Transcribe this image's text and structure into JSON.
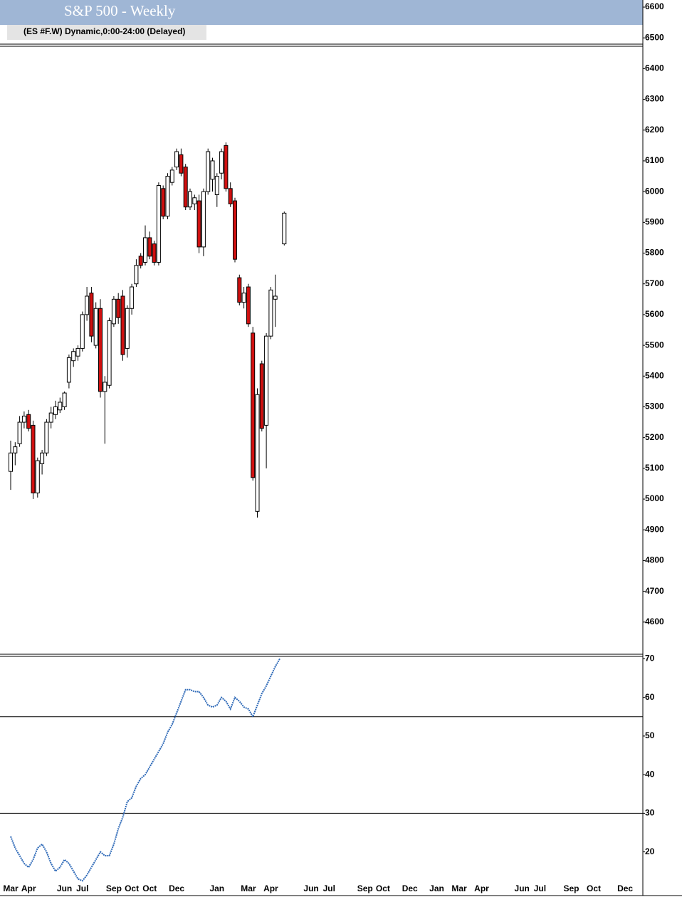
{
  "chart_data": [
    {
      "type": "candlestick",
      "title": "S&P 500 - Weekly",
      "subtitle": "(ES #F.W) Dynamic,0:00-24:00 (Delayed)",
      "up_color": "#ffffff",
      "down_color": "#d01010",
      "open": [
        5090,
        5150,
        5180,
        5250,
        5275,
        5240,
        5020,
        5115,
        5150,
        5250,
        5275,
        5290,
        5300,
        5380,
        5450,
        5465,
        5490,
        5600,
        5670,
        5500,
        5620,
        5350,
        5370,
        5570,
        5650,
        5660,
        5490,
        5620,
        5700,
        5790,
        5770,
        5850,
        5830,
        5770,
        6010,
        5920,
        6030,
        6080,
        6120,
        6080,
        5950,
        5960,
        5970,
        5820,
        6000,
        6040,
        5990,
        6060,
        6150,
        6010,
        5970,
        5720,
        5640,
        5690,
        5540,
        4960,
        5440,
        5240,
        5530,
        5650,
        null,
        5830
      ],
      "high": [
        5190,
        5185,
        5270,
        5285,
        5290,
        5255,
        5135,
        5160,
        5260,
        5300,
        5320,
        5330,
        5350,
        5470,
        5490,
        5500,
        5610,
        5690,
        5690,
        5640,
        5650,
        5400,
        5590,
        5660,
        5670,
        5680,
        5630,
        5700,
        5780,
        5800,
        5890,
        5870,
        5840,
        6030,
        6020,
        6060,
        6080,
        6140,
        6140,
        6090,
        6010,
        5990,
        5990,
        6010,
        6140,
        6110,
        6060,
        6140,
        6160,
        6030,
        5980,
        5730,
        5690,
        5700,
        5560,
        5360,
        5450,
        5540,
        5690,
        5730,
        null,
        5935
      ],
      "low": [
        5030,
        5110,
        5170,
        5230,
        5220,
        5000,
        5005,
        5080,
        5140,
        5230,
        5260,
        5280,
        5290,
        5360,
        5430,
        5450,
        5480,
        5580,
        5510,
        5490,
        5330,
        5180,
        5360,
        5560,
        5570,
        5450,
        5460,
        5600,
        5690,
        5750,
        5760,
        5780,
        5760,
        5760,
        5910,
        5910,
        6020,
        6070,
        6050,
        5940,
        5940,
        5940,
        5800,
        5790,
        5990,
        6000,
        5950,
        6040,
        6000,
        5950,
        5770,
        5630,
        5620,
        5560,
        5060,
        4940,
        5220,
        5100,
        5520,
        5560,
        null,
        5825
      ],
      "close": [
        5150,
        5170,
        5250,
        5270,
        5230,
        5020,
        5125,
        5150,
        5250,
        5280,
        5300,
        5315,
        5345,
        5460,
        5480,
        5490,
        5600,
        5660,
        5530,
        5620,
        5350,
        5380,
        5580,
        5650,
        5590,
        5470,
        5620,
        5690,
        5760,
        5760,
        5850,
        5790,
        5770,
        6020,
        5920,
        6050,
        6070,
        6130,
        6060,
        5950,
        6000,
        5980,
        5820,
        6000,
        6130,
        6100,
        6050,
        6130,
        6010,
        5960,
        5780,
        5640,
        5670,
        5570,
        5070,
        5340,
        5230,
        5530,
        5680,
        5660,
        null,
        5930
      ],
      "ylim": [
        4500,
        6600
      ],
      "yticks": [
        6600,
        6500,
        6400,
        6300,
        6200,
        6100,
        6000,
        5900,
        5800,
        5700,
        5600,
        5500,
        5400,
        5300,
        5200,
        5100,
        5000,
        4900,
        4800,
        4700,
        4600
      ]
    },
    {
      "type": "line",
      "color": "#2f6ab8",
      "categories": [
        "Mar",
        null,
        null,
        null,
        "Apr",
        null,
        null,
        null,
        null,
        null,
        null,
        null,
        "Jun",
        null,
        null,
        null,
        "Jul",
        null,
        null,
        null,
        null,
        null,
        null,
        "Sep",
        null,
        null,
        null,
        "Oct",
        null,
        null,
        null,
        "Oct",
        null,
        null,
        null,
        null,
        null,
        "Dec",
        null,
        null,
        null,
        null,
        null,
        null,
        null,
        null,
        "Jan",
        null,
        null,
        null,
        null,
        null,
        null,
        "Mar",
        null,
        null,
        null,
        null,
        "Apr",
        null,
        null,
        null,
        null,
        null,
        null,
        null,
        null,
        "Jun",
        null,
        null,
        null,
        "Jul",
        null,
        null,
        null,
        null,
        null,
        null,
        null,
        "Sep",
        null,
        null,
        null,
        "Oct",
        null,
        null,
        null,
        null,
        null,
        "Dec",
        null,
        null,
        null,
        null,
        null,
        "Jan",
        null,
        null,
        null,
        null,
        "Mar",
        null,
        null,
        null,
        null,
        "Apr",
        null,
        null,
        null,
        null,
        null,
        null,
        null,
        null,
        "Jun",
        null,
        null,
        null,
        "Jul",
        null,
        null,
        null,
        null,
        null,
        null,
        "Sep",
        null,
        null,
        null,
        null,
        "Oct",
        null,
        null,
        null,
        null,
        null,
        null,
        "Dec",
        null,
        null,
        null
      ],
      "values": [
        24,
        21,
        19,
        17,
        16,
        18,
        21,
        22,
        20,
        17,
        15,
        16,
        18,
        17,
        15,
        13,
        12.5,
        14,
        16,
        18,
        20,
        19,
        19,
        22,
        26,
        29,
        33,
        34,
        37,
        39,
        40,
        42,
        44,
        46,
        48,
        51,
        53,
        56,
        59,
        62,
        62,
        61.5,
        61.5,
        60,
        58,
        57.5,
        58,
        60,
        59,
        57,
        60,
        59,
        57.5,
        57,
        55,
        58,
        61,
        63,
        65.5,
        68,
        70,
        null,
        null,
        null,
        null,
        null,
        null,
        null,
        null,
        null,
        null,
        null,
        null,
        null,
        null,
        null,
        null,
        null,
        null,
        null,
        null,
        null,
        null,
        null,
        null,
        null,
        null,
        null,
        null,
        null,
        null,
        null,
        null,
        null,
        null,
        null,
        null,
        null,
        null,
        null,
        null,
        null,
        null,
        null,
        null,
        null,
        null,
        null,
        null,
        null,
        null,
        null,
        null,
        null,
        null,
        null,
        null,
        null,
        null,
        null,
        null,
        null,
        null,
        null,
        null,
        null,
        null,
        null,
        null,
        null,
        null,
        null,
        null,
        null,
        null,
        null,
        null,
        null,
        null,
        null,
        null
      ],
      "ylim": [
        12,
        71
      ],
      "yticks": [
        70,
        60,
        50,
        40,
        30,
        20
      ],
      "hlines": [
        55,
        30
      ]
    }
  ]
}
